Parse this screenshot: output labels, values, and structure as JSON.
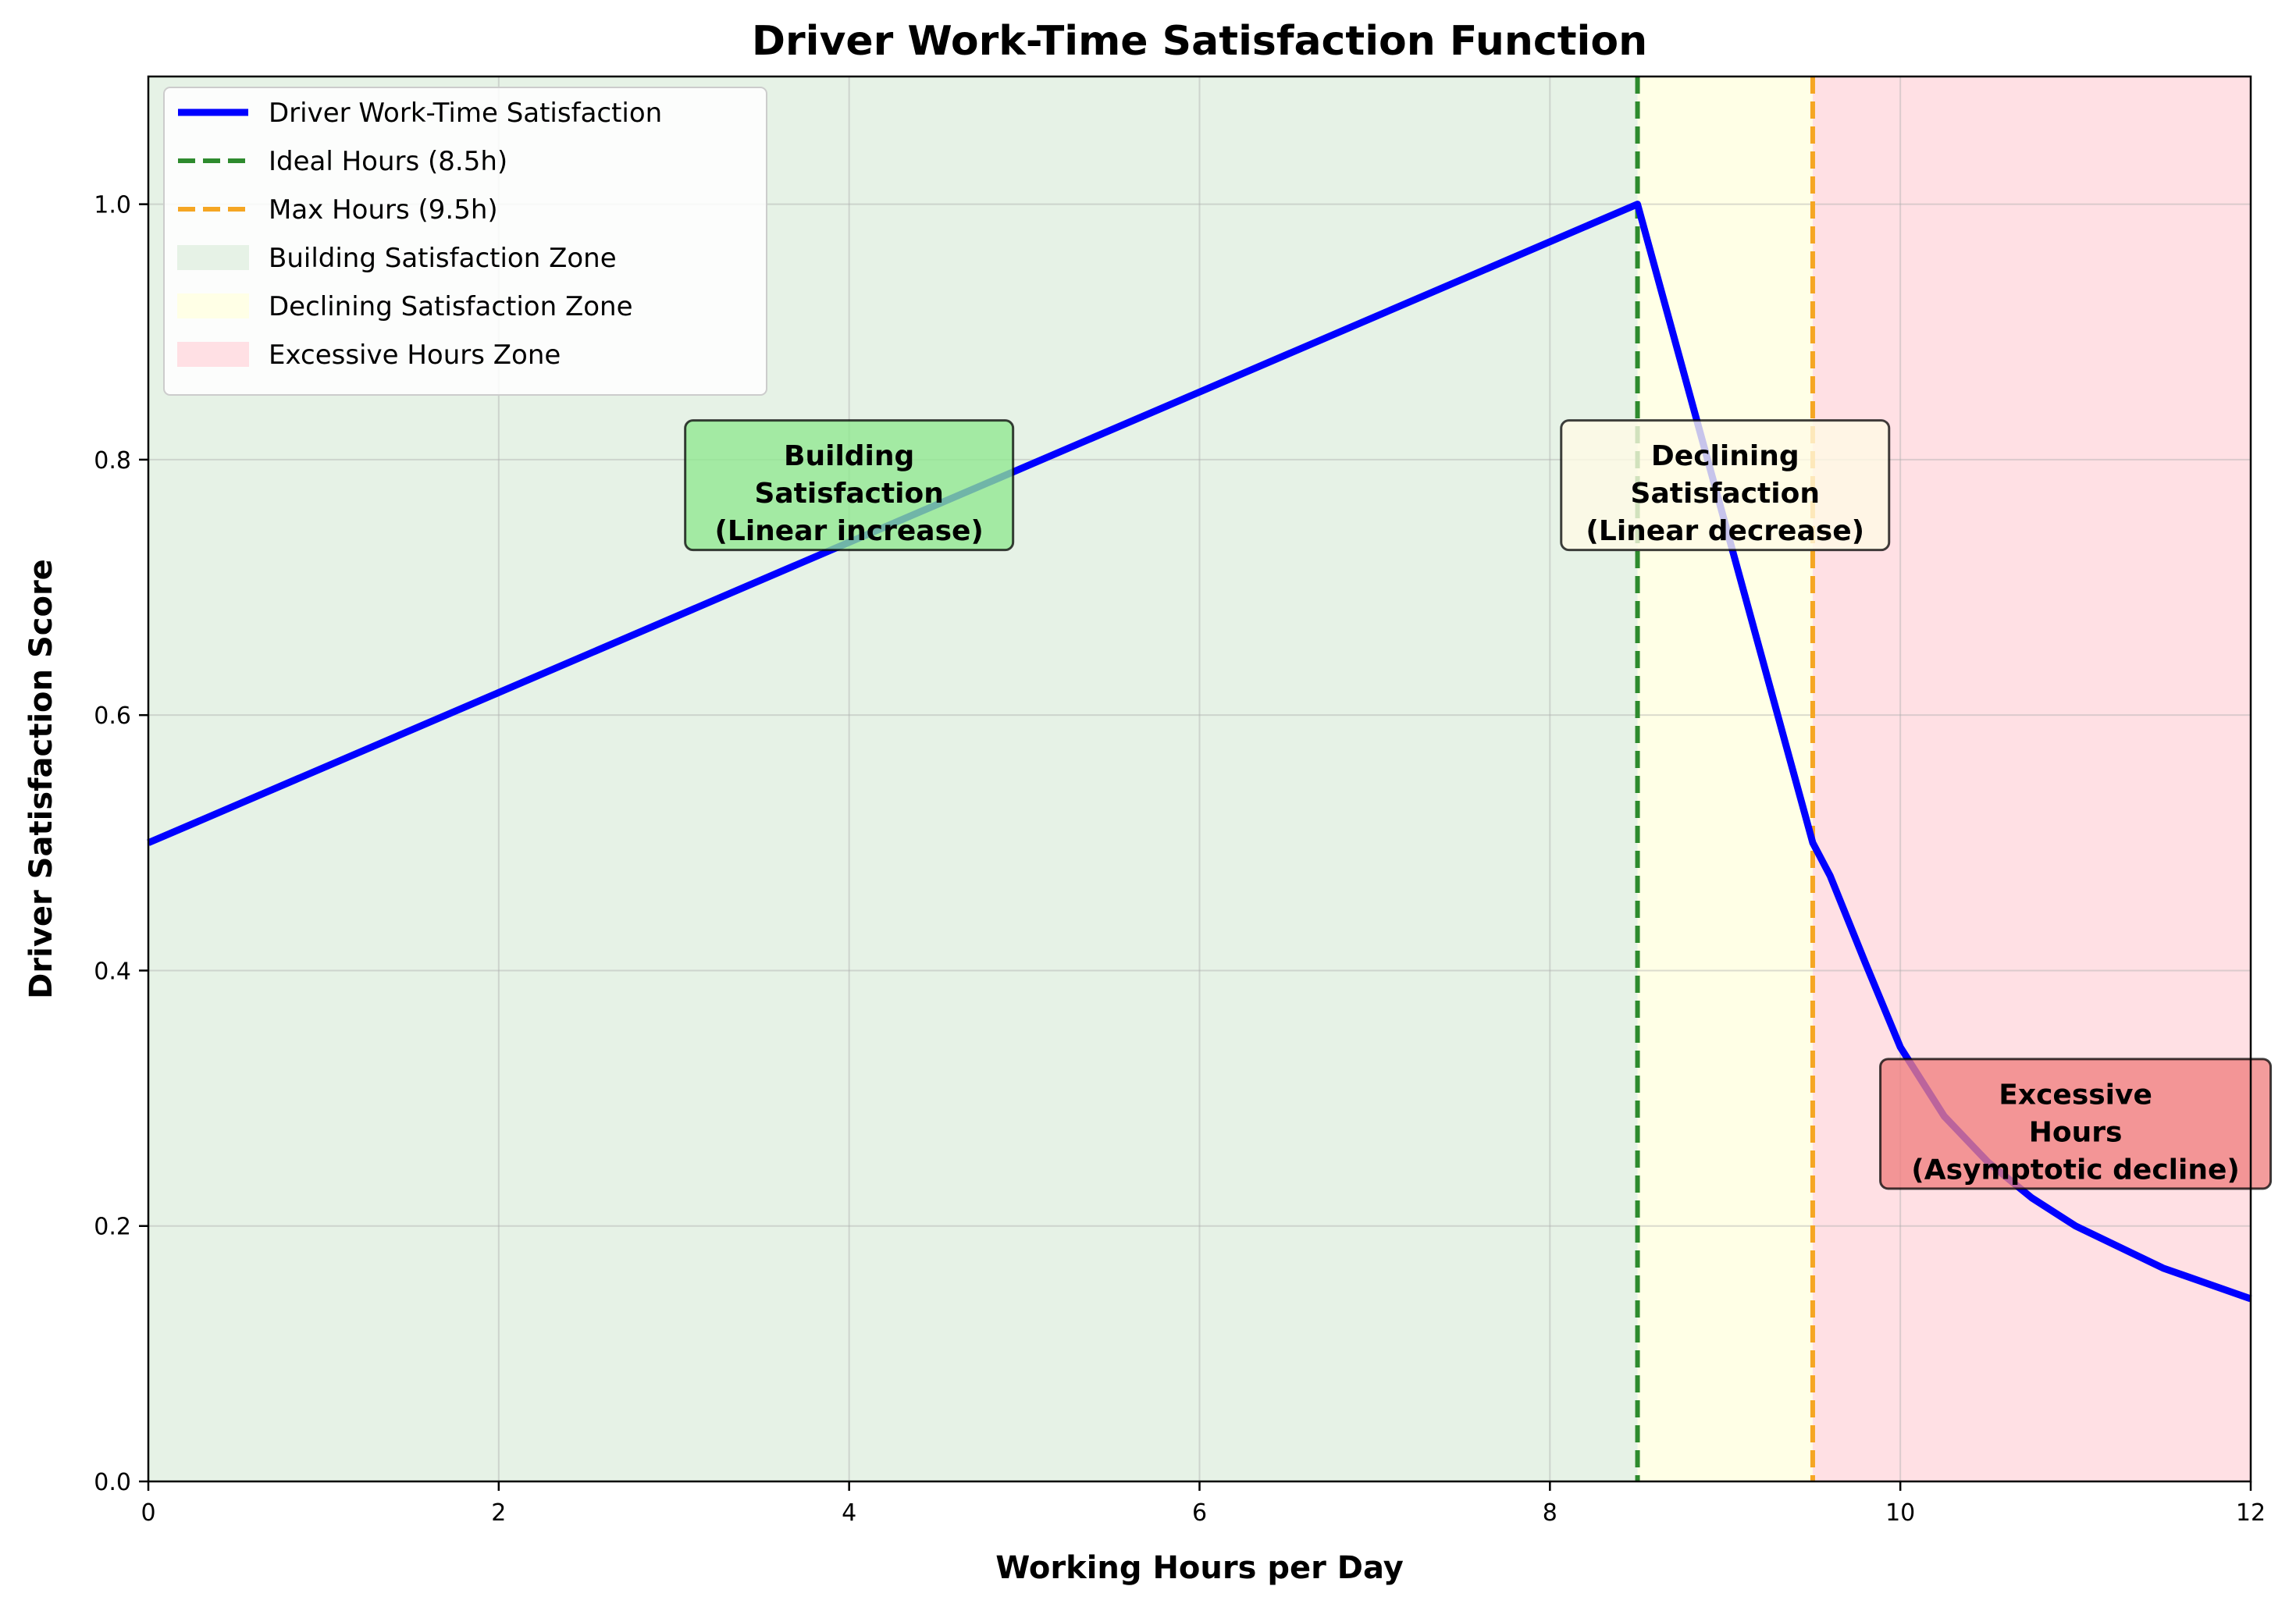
{
  "chart_data": {
    "type": "line",
    "title": "Driver Work-Time Satisfaction Function",
    "xlabel": "Working Hours per Day",
    "ylabel": "Driver Satisfaction Score",
    "xlim": [
      0,
      12
    ],
    "ylim": [
      0,
      1.1
    ],
    "xticks": [
      0,
      2,
      4,
      6,
      8,
      10,
      12
    ],
    "xtick_labels": [
      "0",
      "2",
      "4",
      "6",
      "8",
      "10",
      "12"
    ],
    "yticks": [
      0.0,
      0.2,
      0.4,
      0.6,
      0.8,
      1.0
    ],
    "ytick_labels": [
      "0.0",
      "0.2",
      "0.4",
      "0.6",
      "0.8",
      "1.0"
    ],
    "grid": true,
    "legend_position": "upper-left",
    "series": [
      {
        "name": "Driver Work-Time Satisfaction",
        "color": "#0000ff",
        "points": [
          [
            0,
            0.5
          ],
          [
            8.5,
            1.0
          ],
          [
            9.5,
            0.5
          ],
          [
            9.6,
            0.474
          ],
          [
            9.8,
            0.406
          ],
          [
            10.0,
            0.34
          ],
          [
            10.25,
            0.286
          ],
          [
            10.5,
            0.25
          ],
          [
            10.75,
            0.222
          ],
          [
            11.0,
            0.2
          ],
          [
            11.5,
            0.167
          ],
          [
            12.0,
            0.143
          ]
        ]
      }
    ],
    "reference_lines": [
      {
        "name": "Ideal Hours (8.5h)",
        "x": 8.5,
        "color": "#2e8b2e",
        "style": "dashed"
      },
      {
        "name": "Max Hours (9.5h)",
        "x": 9.5,
        "color": "#f5a623",
        "style": "dashed"
      }
    ],
    "zones": [
      {
        "name": "Building Satisfaction Zone",
        "from": 0,
        "to": 8.5,
        "color": "#e6f2e6"
      },
      {
        "name": "Declining Satisfaction Zone",
        "from": 8.5,
        "to": 9.5,
        "color": "#ffffe6"
      },
      {
        "name": "Excessive Hours Zone",
        "from": 9.5,
        "to": 12,
        "color": "#ffe0e4"
      }
    ],
    "annotations": [
      {
        "lines": [
          "Building",
          "Satisfaction",
          "(Linear increase)"
        ],
        "x": 4.0,
        "y": 0.78,
        "box_color": "#90e890"
      },
      {
        "lines": [
          "Declining",
          "Satisfaction",
          "(Linear decrease)"
        ],
        "x": 9.0,
        "y": 0.78,
        "box_color": "#fffbe6"
      },
      {
        "lines": [
          "Excessive",
          "Hours",
          "(Asymptotic decline)"
        ],
        "x": 11.0,
        "y": 0.28,
        "box_color": "#f08080"
      }
    ]
  }
}
